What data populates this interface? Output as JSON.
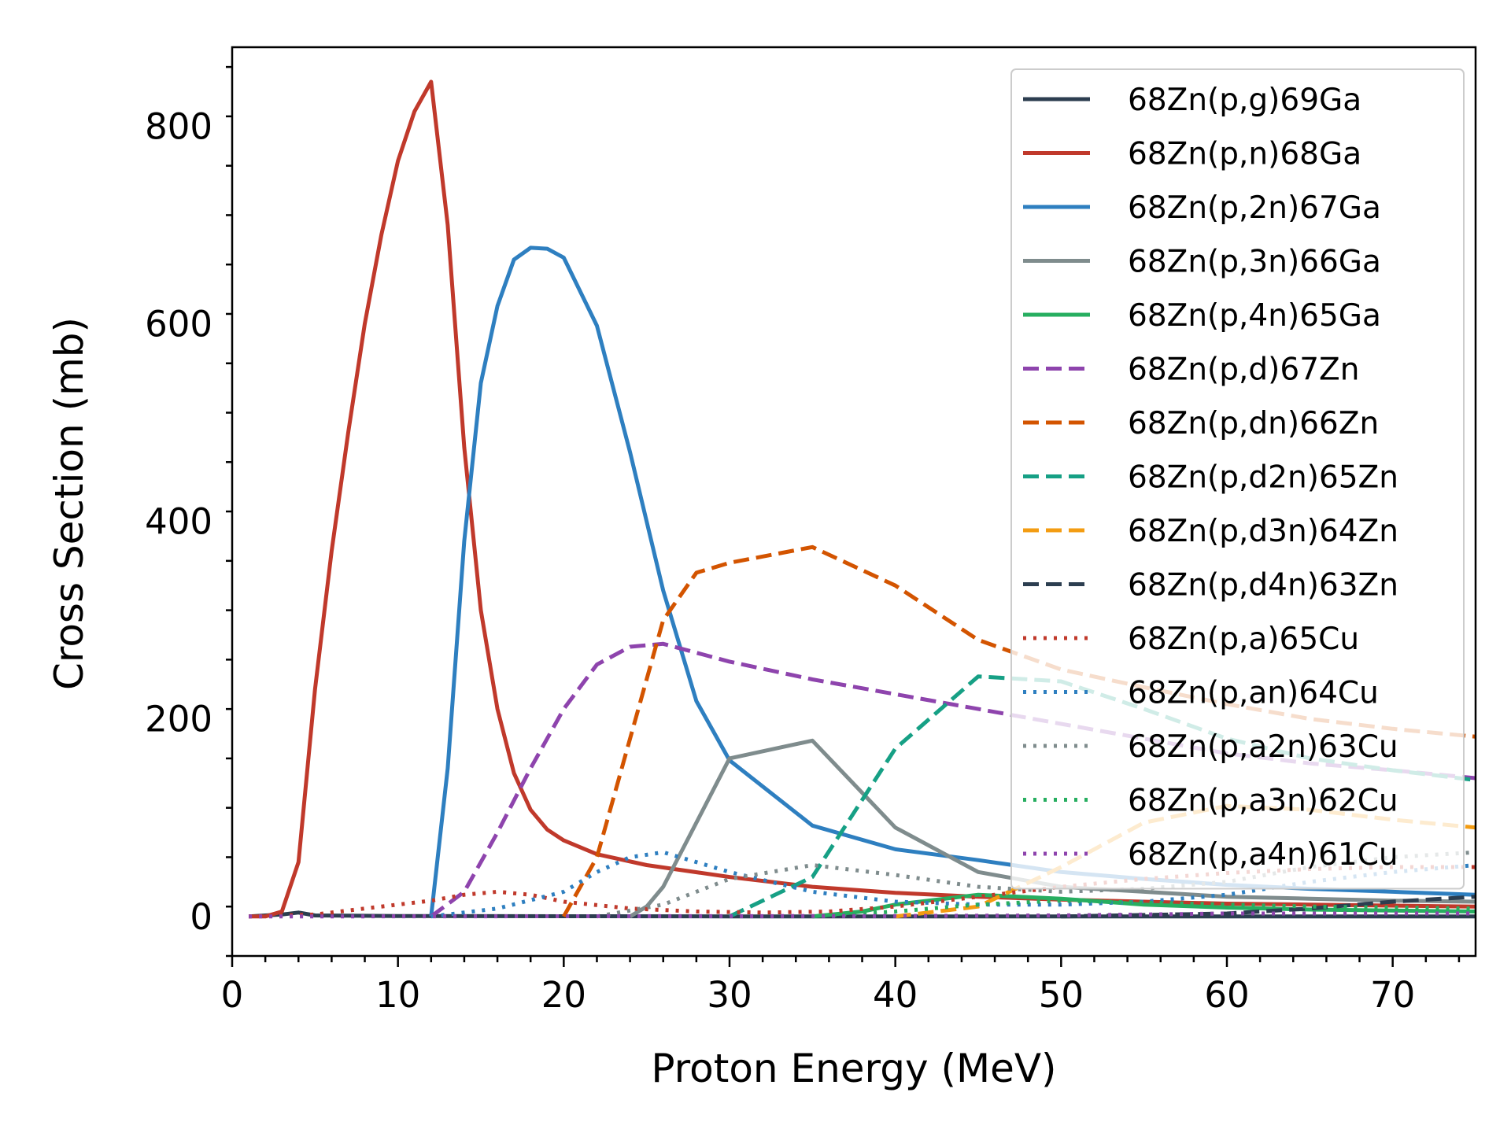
{
  "chart_data": {
    "type": "line",
    "title": "",
    "xlabel": "Proton Energy (MeV)",
    "ylabel": "Cross Section (mb)",
    "xlim": [
      0,
      75
    ],
    "ylim": [
      -40,
      880
    ],
    "xticks": [
      0,
      10,
      20,
      30,
      40,
      50,
      60,
      70
    ],
    "yticks": [
      0,
      200,
      400,
      600,
      800
    ],
    "xtick_labels": [
      "0",
      "10",
      "20",
      "30",
      "40",
      "50",
      "60",
      "70"
    ],
    "ytick_labels": [
      "0",
      "200",
      "400",
      "600",
      "800"
    ],
    "grid": false,
    "legend_position": "top-right",
    "series": [
      {
        "name": "68Zn(p,g)69Ga",
        "color": "#2c3e50",
        "dash": "solid",
        "points": [
          [
            1,
            0
          ],
          [
            3,
            2
          ],
          [
            4,
            4
          ],
          [
            5,
            1
          ],
          [
            10,
            0.5
          ],
          [
            20,
            0.2
          ],
          [
            30,
            0.1
          ],
          [
            40,
            0.1
          ],
          [
            75,
            0.1
          ]
        ]
      },
      {
        "name": "68Zn(p,n)68Ga",
        "color": "#c0392b",
        "dash": "solid",
        "points": [
          [
            1,
            0
          ],
          [
            2,
            0
          ],
          [
            3,
            5
          ],
          [
            4,
            55
          ],
          [
            5,
            230
          ],
          [
            6,
            370
          ],
          [
            7,
            490
          ],
          [
            8,
            600
          ],
          [
            9,
            690
          ],
          [
            10,
            765
          ],
          [
            11,
            815
          ],
          [
            12,
            845
          ],
          [
            13,
            700
          ],
          [
            14,
            475
          ],
          [
            15,
            310
          ],
          [
            16,
            210
          ],
          [
            17,
            145
          ],
          [
            18,
            108
          ],
          [
            19,
            88
          ],
          [
            20,
            77
          ],
          [
            22,
            63
          ],
          [
            25,
            52
          ],
          [
            30,
            40
          ],
          [
            35,
            30
          ],
          [
            40,
            24
          ],
          [
            45,
            20
          ],
          [
            50,
            17
          ],
          [
            55,
            15
          ],
          [
            60,
            13
          ],
          [
            65,
            12
          ],
          [
            70,
            11
          ],
          [
            75,
            10
          ]
        ]
      },
      {
        "name": "68Zn(p,2n)67Ga",
        "color": "#2e7fc0",
        "dash": "solid",
        "points": [
          [
            12,
            0
          ],
          [
            13,
            150
          ],
          [
            14,
            380
          ],
          [
            15,
            540
          ],
          [
            16,
            618
          ],
          [
            17,
            665
          ],
          [
            18,
            677
          ],
          [
            19,
            676
          ],
          [
            20,
            667
          ],
          [
            22,
            598
          ],
          [
            24,
            470
          ],
          [
            26,
            330
          ],
          [
            28,
            218
          ],
          [
            30,
            158
          ],
          [
            35,
            92
          ],
          [
            40,
            68
          ],
          [
            45,
            57
          ],
          [
            50,
            45
          ],
          [
            55,
            38
          ],
          [
            60,
            32
          ],
          [
            65,
            28
          ],
          [
            70,
            25
          ],
          [
            75,
            22
          ]
        ]
      },
      {
        "name": "68Zn(p,3n)66Ga",
        "color": "#7f8c8d",
        "dash": "solid",
        "points": [
          [
            24,
            0
          ],
          [
            25,
            10
          ],
          [
            26,
            30
          ],
          [
            28,
            95
          ],
          [
            30,
            160
          ],
          [
            35,
            178
          ],
          [
            40,
            90
          ],
          [
            45,
            45
          ],
          [
            50,
            30
          ],
          [
            55,
            25
          ],
          [
            60,
            20
          ],
          [
            65,
            18
          ],
          [
            70,
            16
          ],
          [
            75,
            15
          ]
        ]
      },
      {
        "name": "68Zn(p,4n)65Ga",
        "color": "#27ae60",
        "dash": "solid",
        "points": [
          [
            35,
            0
          ],
          [
            38,
            5
          ],
          [
            40,
            12
          ],
          [
            45,
            22
          ],
          [
            50,
            18
          ],
          [
            55,
            12
          ],
          [
            60,
            9
          ],
          [
            65,
            7
          ],
          [
            70,
            6
          ],
          [
            75,
            5
          ]
        ]
      },
      {
        "name": "68Zn(p,d)67Zn",
        "color": "#8e44ad",
        "dash": "dashed",
        "points": [
          [
            12,
            0
          ],
          [
            14,
            25
          ],
          [
            16,
            85
          ],
          [
            18,
            150
          ],
          [
            20,
            210
          ],
          [
            22,
            255
          ],
          [
            24,
            273
          ],
          [
            26,
            276
          ],
          [
            30,
            258
          ],
          [
            35,
            240
          ],
          [
            40,
            225
          ],
          [
            45,
            210
          ],
          [
            50,
            195
          ],
          [
            55,
            180
          ],
          [
            60,
            165
          ],
          [
            65,
            155
          ],
          [
            70,
            148
          ],
          [
            75,
            140
          ]
        ]
      },
      {
        "name": "68Zn(p,dn)66Zn",
        "color": "#d35400",
        "dash": "dashed",
        "points": [
          [
            20,
            0
          ],
          [
            22,
            60
          ],
          [
            24,
            180
          ],
          [
            26,
            300
          ],
          [
            28,
            348
          ],
          [
            30,
            358
          ],
          [
            35,
            374
          ],
          [
            40,
            335
          ],
          [
            45,
            280
          ],
          [
            50,
            250
          ],
          [
            55,
            232
          ],
          [
            60,
            215
          ],
          [
            65,
            200
          ],
          [
            70,
            190
          ],
          [
            75,
            182
          ]
        ]
      },
      {
        "name": "68Zn(p,d2n)65Zn",
        "color": "#16a085",
        "dash": "dashed",
        "points": [
          [
            30,
            0
          ],
          [
            35,
            40
          ],
          [
            40,
            170
          ],
          [
            45,
            243
          ],
          [
            50,
            238
          ],
          [
            55,
            210
          ],
          [
            60,
            180
          ],
          [
            65,
            160
          ],
          [
            70,
            148
          ],
          [
            75,
            138
          ]
        ]
      },
      {
        "name": "68Zn(p,d3n)64Zn",
        "color": "#f39c12",
        "dash": "dashed",
        "points": [
          [
            40,
            0
          ],
          [
            45,
            10
          ],
          [
            50,
            50
          ],
          [
            55,
            95
          ],
          [
            60,
            112
          ],
          [
            65,
            108
          ],
          [
            70,
            98
          ],
          [
            75,
            90
          ]
        ]
      },
      {
        "name": "68Zn(p,d4n)63Zn",
        "color": "#2c3e50",
        "dash": "dashed",
        "points": [
          [
            50,
            0
          ],
          [
            60,
            3
          ],
          [
            65,
            8
          ],
          [
            70,
            15
          ],
          [
            75,
            20
          ]
        ]
      },
      {
        "name": "68Zn(p,a)65Cu",
        "color": "#c0392b",
        "dash": "dotted",
        "points": [
          [
            1,
            0
          ],
          [
            5,
            2
          ],
          [
            8,
            8
          ],
          [
            10,
            12
          ],
          [
            12,
            16
          ],
          [
            14,
            22
          ],
          [
            16,
            25
          ],
          [
            18,
            22
          ],
          [
            20,
            15
          ],
          [
            24,
            8
          ],
          [
            28,
            5
          ],
          [
            32,
            4
          ],
          [
            36,
            5
          ],
          [
            40,
            10
          ],
          [
            45,
            20
          ],
          [
            50,
            30
          ],
          [
            55,
            38
          ],
          [
            60,
            44
          ],
          [
            65,
            48
          ],
          [
            70,
            50
          ],
          [
            75,
            50
          ]
        ]
      },
      {
        "name": "68Zn(p,an)64Cu",
        "color": "#2e7fc0",
        "dash": "dotted",
        "points": [
          [
            12,
            0
          ],
          [
            16,
            8
          ],
          [
            20,
            25
          ],
          [
            22,
            45
          ],
          [
            24,
            60
          ],
          [
            26,
            65
          ],
          [
            28,
            55
          ],
          [
            30,
            45
          ],
          [
            35,
            25
          ],
          [
            40,
            15
          ],
          [
            45,
            12
          ],
          [
            50,
            12
          ],
          [
            55,
            15
          ],
          [
            60,
            22
          ],
          [
            65,
            35
          ],
          [
            70,
            45
          ],
          [
            75,
            52
          ]
        ]
      },
      {
        "name": "68Zn(p,a2n)63Cu",
        "color": "#7f8c8d",
        "dash": "dotted",
        "points": [
          [
            22,
            0
          ],
          [
            26,
            12
          ],
          [
            30,
            38
          ],
          [
            35,
            52
          ],
          [
            40,
            42
          ],
          [
            45,
            30
          ],
          [
            50,
            25
          ],
          [
            55,
            28
          ],
          [
            60,
            35
          ],
          [
            65,
            50
          ],
          [
            70,
            60
          ],
          [
            75,
            65
          ]
        ]
      },
      {
        "name": "68Zn(p,a3n)62Cu",
        "color": "#27ae60",
        "dash": "dotted",
        "points": [
          [
            35,
            0
          ],
          [
            40,
            5
          ],
          [
            45,
            12
          ],
          [
            50,
            16
          ],
          [
            55,
            14
          ],
          [
            60,
            12
          ],
          [
            65,
            10
          ],
          [
            70,
            9
          ],
          [
            75,
            8
          ]
        ]
      },
      {
        "name": "68Zn(p,a4n)61Cu",
        "color": "#8e44ad",
        "dash": "dotted",
        "points": [
          [
            1,
            0
          ],
          [
            40,
            0.5
          ],
          [
            50,
            1
          ],
          [
            55,
            2
          ],
          [
            60,
            3
          ],
          [
            65,
            3
          ],
          [
            70,
            3
          ],
          [
            75,
            3
          ]
        ]
      }
    ]
  }
}
